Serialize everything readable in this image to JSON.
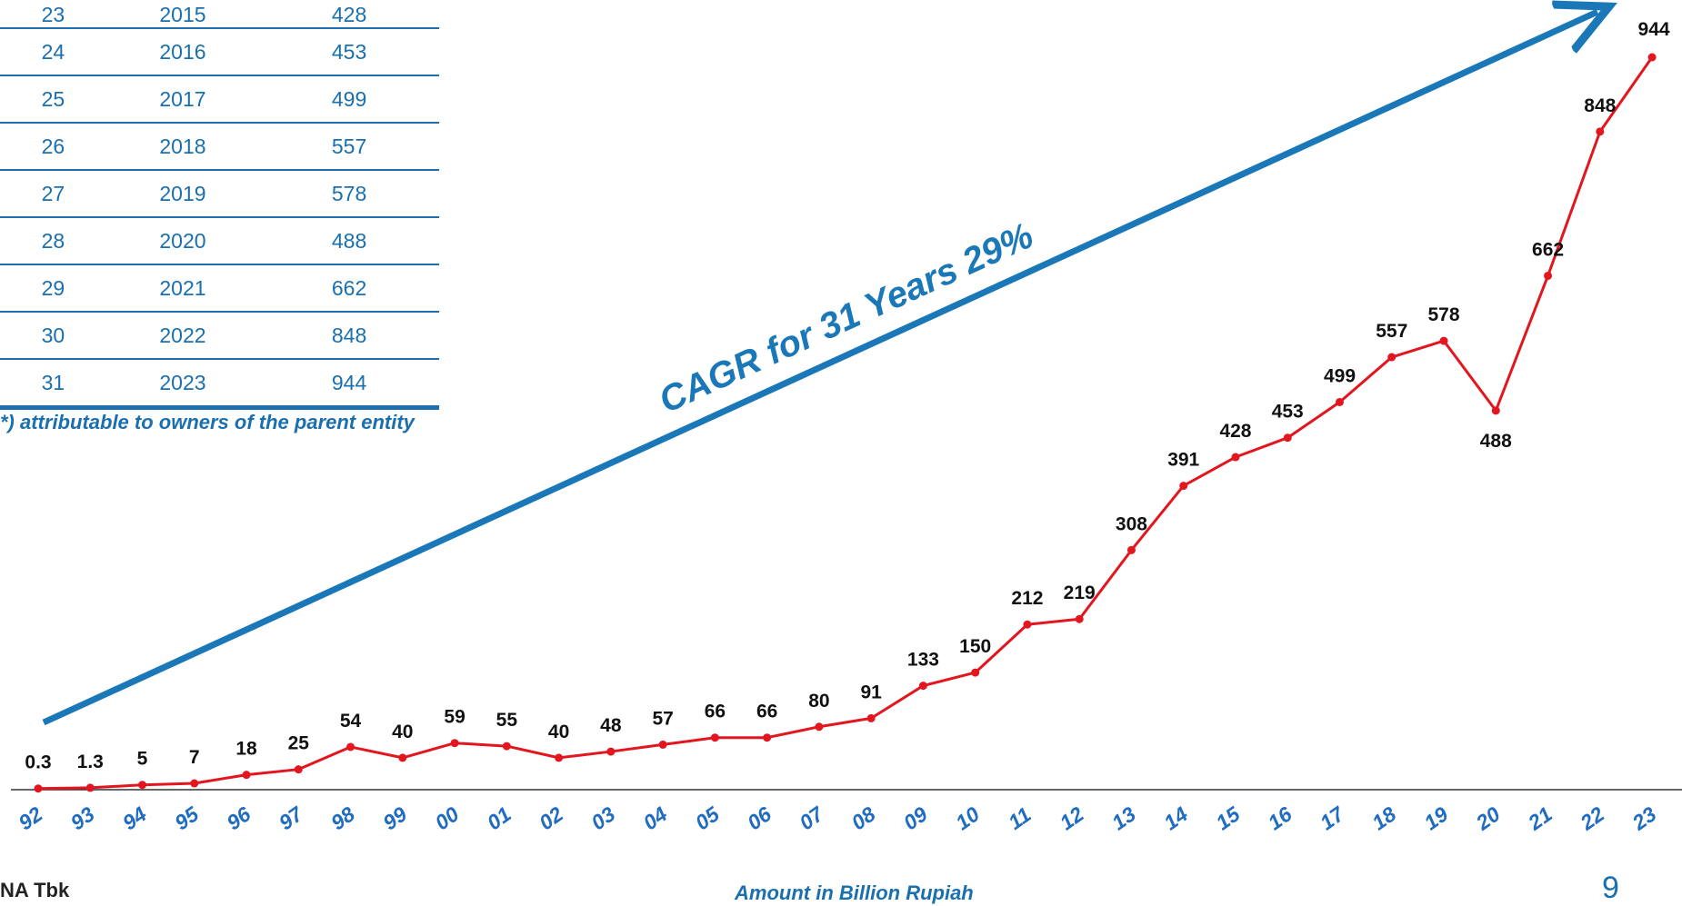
{
  "table": {
    "rows": [
      {
        "no": "23",
        "year": "2015",
        "value": "428"
      },
      {
        "no": "24",
        "year": "2016",
        "value": "453"
      },
      {
        "no": "25",
        "year": "2017",
        "value": "499"
      },
      {
        "no": "26",
        "year": "2018",
        "value": "557"
      },
      {
        "no": "27",
        "year": "2019",
        "value": "578"
      },
      {
        "no": "28",
        "year": "2020",
        "value": "488"
      },
      {
        "no": "29",
        "year": "2021",
        "value": "662"
      },
      {
        "no": "30",
        "year": "2022",
        "value": "848"
      },
      {
        "no": "31",
        "year": "2023",
        "value": "944"
      }
    ],
    "footnote": "*) attributable to owners of the parent entity"
  },
  "footer": {
    "company": "NA Tbk",
    "unit_note": "Amount in Billion Rupiah",
    "page_number": "9"
  },
  "colors": {
    "line": "#e3151e",
    "accent_blue": "#1a78b8",
    "axis_label": "#1f6cc0",
    "value_label": "#111111"
  },
  "chart_data": {
    "type": "line",
    "x": [
      "92",
      "93",
      "94",
      "95",
      "96",
      "97",
      "98",
      "99",
      "00",
      "01",
      "02",
      "03",
      "04",
      "05",
      "06",
      "07",
      "08",
      "09",
      "10",
      "11",
      "12",
      "13",
      "14",
      "15",
      "16",
      "17",
      "18",
      "19",
      "20",
      "21",
      "22",
      "23"
    ],
    "series": [
      {
        "values": [
          0.3,
          1.3,
          5,
          7,
          18,
          25,
          54,
          40,
          59,
          55,
          40,
          48,
          57,
          66,
          66,
          80,
          91,
          133,
          150,
          212,
          219,
          308,
          391,
          428,
          453,
          499,
          557,
          578,
          488,
          662,
          848,
          944
        ],
        "labels": [
          "0.3",
          "1.3",
          "5",
          "7",
          "18",
          "25",
          "54",
          "40",
          "59",
          "55",
          "40",
          "48",
          "57",
          "66",
          "66",
          "80",
          "91",
          "133",
          "150",
          "212",
          "219",
          "308",
          "391",
          "428",
          "453",
          "499",
          "557",
          "578",
          "488",
          "662",
          "848",
          "944"
        ]
      }
    ],
    "annotation": "CAGR for 31 Years 29%",
    "ylim": [
      0,
      944
    ],
    "grid": false,
    "legend": "none"
  }
}
